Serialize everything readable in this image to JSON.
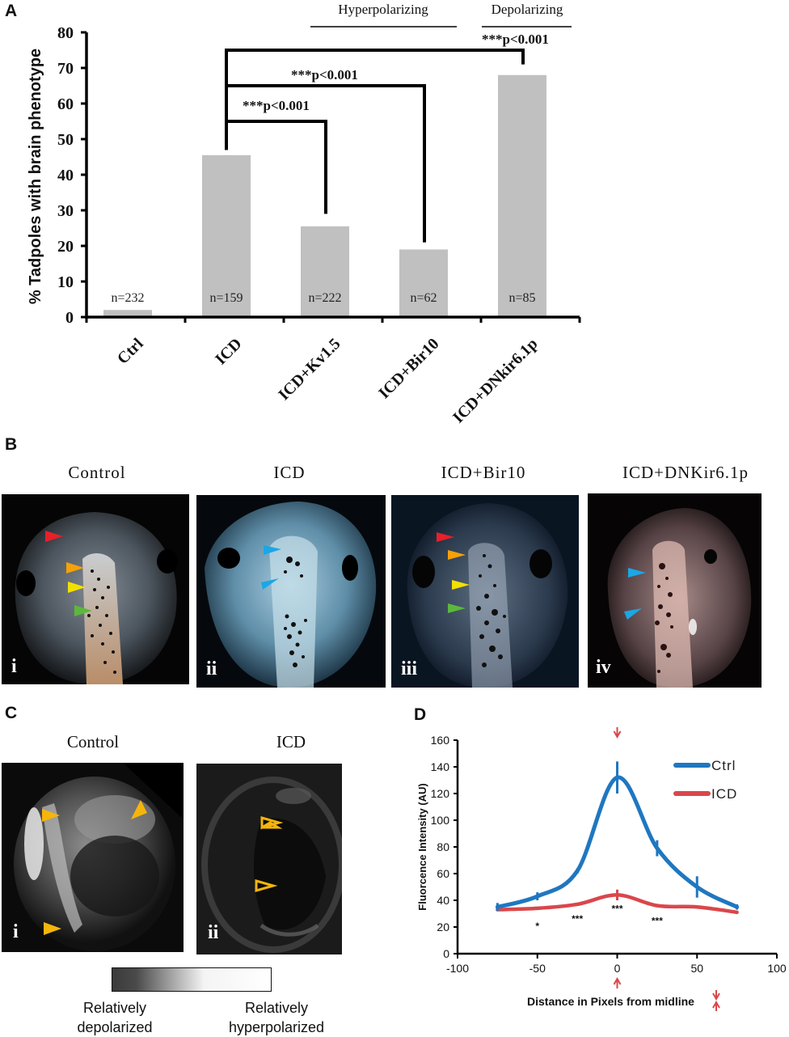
{
  "figure": {
    "panel_letters": {
      "a": "A",
      "b": "B",
      "c": "C",
      "d": "D"
    }
  },
  "chart_data": [
    {
      "panel": "A",
      "type": "bar",
      "title": "",
      "xlabel": "",
      "ylabel": "% Tadpoles with brain phenotype",
      "ylim": [
        0,
        80
      ],
      "yticks": [
        0,
        10,
        20,
        30,
        40,
        50,
        60,
        70,
        80
      ],
      "categories": [
        "Ctrl",
        "ICD",
        "ICD+Kv1.5",
        "ICD+Bir10",
        "ICD+DNkir6.1p"
      ],
      "values": [
        2,
        45.5,
        25.5,
        19,
        68
      ],
      "n_labels": [
        "n=232",
        "n=159",
        "n=222",
        "n=62",
        "n=85"
      ],
      "bar_color": "#c0c0c0",
      "group_labels": [
        {
          "label": "Hyperpolarizing",
          "categories": [
            "ICD+Kv1.5",
            "ICD+Bir10"
          ]
        },
        {
          "label": "Depolarizing",
          "categories": [
            "ICD+DNkir6.1p"
          ]
        }
      ],
      "significance": [
        {
          "from": "ICD",
          "to": "ICD+Kv1.5",
          "label": "***p<0.001",
          "level": 55
        },
        {
          "from": "ICD",
          "to": "ICD+Bir10",
          "label": "***p<0.001",
          "level": 65
        },
        {
          "from": "ICD",
          "to": "ICD+DNkir6.1p",
          "label": "***p<0.001",
          "level": 75
        }
      ]
    },
    {
      "panel": "D",
      "type": "line",
      "title": "",
      "xlabel": "Distance in Pixels from midline",
      "ylabel": "Fluorcence Intensity (AU)",
      "xlim": [
        -100,
        100
      ],
      "ylim": [
        0,
        160
      ],
      "xticks": [
        -100,
        -50,
        0,
        50,
        100
      ],
      "yticks": [
        0,
        20,
        40,
        60,
        80,
        100,
        120,
        140,
        160
      ],
      "x": [
        -75,
        -50,
        -25,
        0,
        25,
        50,
        75
      ],
      "series": [
        {
          "name": "Ctrl",
          "color": "#1f77c0",
          "values": [
            35,
            43,
            62,
            132,
            79,
            50,
            35
          ],
          "errors": [
            3,
            3,
            2,
            12,
            6,
            8,
            2
          ]
        },
        {
          "name": "ICD",
          "color": "#d9474b",
          "values": [
            33,
            34,
            37,
            44,
            36,
            35,
            31
          ],
          "errors": [
            1,
            1,
            1,
            4,
            1,
            1,
            1
          ]
        }
      ],
      "significance_marks": [
        {
          "x": -50,
          "label": "*"
        },
        {
          "x": -25,
          "label": "***"
        },
        {
          "x": 0,
          "label": "***"
        },
        {
          "x": 25,
          "label": "***"
        }
      ],
      "legend_position": "top-right",
      "annotation_color": "#d9474b"
    }
  ],
  "panel_b": {
    "images": [
      {
        "title": "Control",
        "roman": "i"
      },
      {
        "title": "ICD",
        "roman": "ii"
      },
      {
        "title": "ICD+Bir10",
        "roman": "iii"
      },
      {
        "title": "ICD+DNKir6.1p",
        "roman": "iv"
      }
    ],
    "arrow_colors": {
      "red": "#e8202a",
      "orange": "#f5a10a",
      "yellow": "#f2e000",
      "green": "#5cb83c",
      "blue": "#1aa7e6"
    }
  },
  "panel_c": {
    "images": [
      {
        "title": "Control",
        "roman": "i"
      },
      {
        "title": "ICD",
        "roman": "ii"
      }
    ],
    "arrow_color": "#f5b50a",
    "scale": {
      "left_label": "Relatively depolarized",
      "right_label": "Relatively hyperpolarized",
      "left_line1": "Relatively",
      "left_line2": "depolarized",
      "right_line1": "Relatively",
      "right_line2": "hyperpolarized"
    }
  }
}
